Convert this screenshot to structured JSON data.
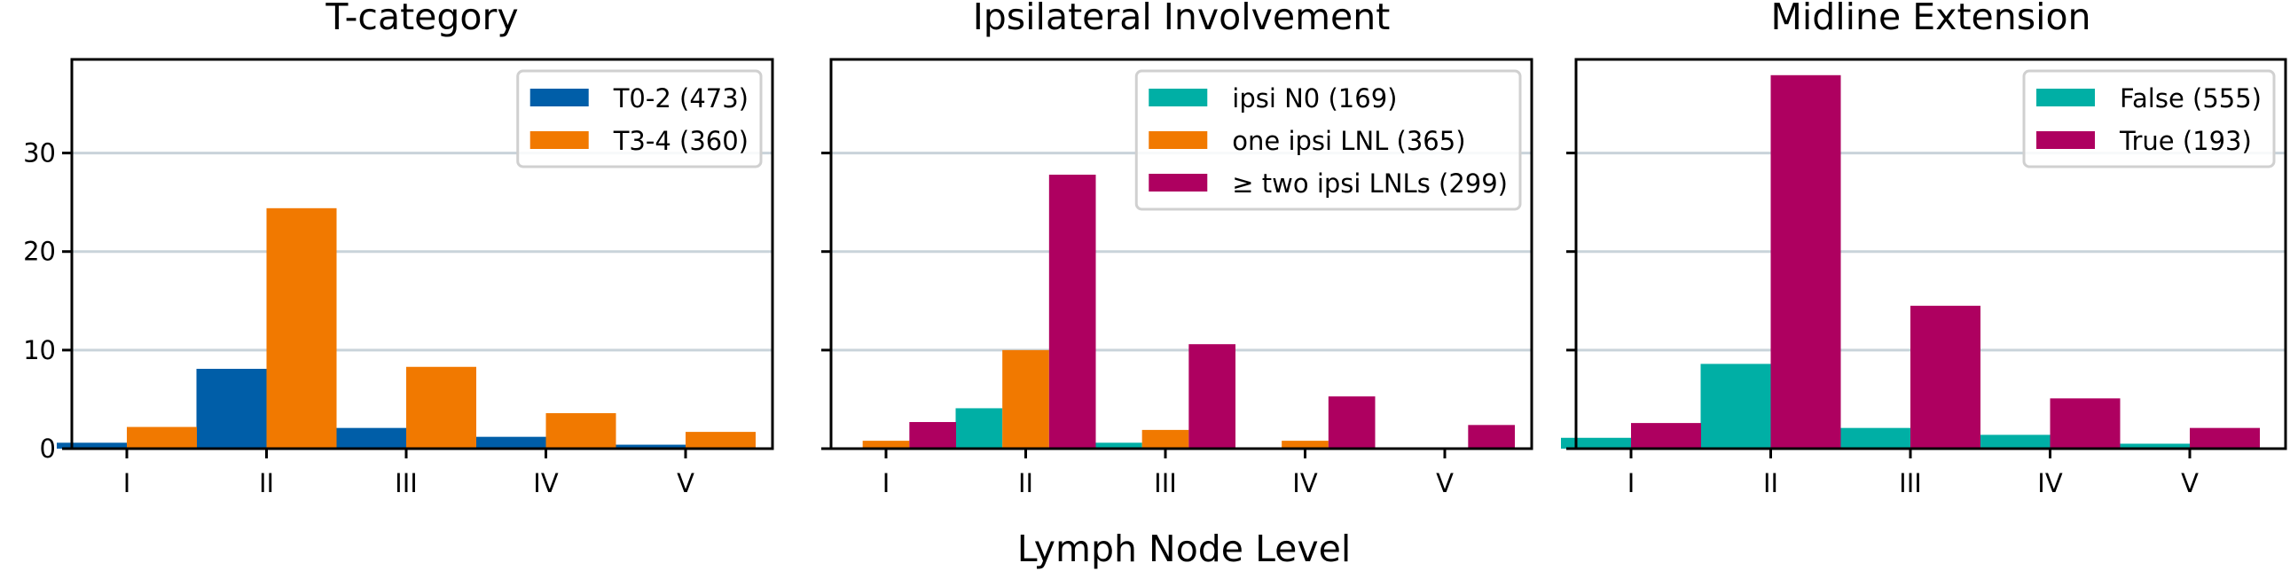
{
  "figure": {
    "xlabel": "Lymph Node Level"
  },
  "chart_data": [
    {
      "type": "bar",
      "title": "T-category",
      "categories": [
        "I",
        "II",
        "III",
        "IV",
        "V"
      ],
      "ylim": [
        0,
        39.5
      ],
      "yticks": [
        0,
        10,
        20,
        30
      ],
      "show_ytick_labels": true,
      "grid": "horizontal",
      "legend": "top-right",
      "series": [
        {
          "name": "T0-2 (473)",
          "color": "#005ea8",
          "values": [
            0.6,
            8.1,
            2.1,
            1.2,
            0.4
          ]
        },
        {
          "name": "T3-4 (360)",
          "color": "#f17900",
          "values": [
            2.2,
            24.4,
            8.3,
            3.6,
            1.7
          ]
        }
      ]
    },
    {
      "type": "bar",
      "title": "Ipsilateral Involvement",
      "categories": [
        "I",
        "II",
        "III",
        "IV",
        "V"
      ],
      "ylim": [
        0,
        39.5
      ],
      "yticks": [
        0,
        10,
        20,
        30
      ],
      "show_ytick_labels": false,
      "grid": "horizontal",
      "legend": "top-right",
      "series": [
        {
          "name": "ipsi N0 (169)",
          "color": "#00afa5",
          "values": [
            0.0,
            4.1,
            0.6,
            0.0,
            0.0
          ]
        },
        {
          "name": "one ipsi LNL (365)",
          "color": "#f17900",
          "values": [
            0.8,
            10.0,
            1.9,
            0.8,
            0.0
          ]
        },
        {
          "name": "≥ two ipsi LNLs (299)",
          "color": "#ae0060",
          "values": [
            2.7,
            27.8,
            10.6,
            5.3,
            2.4
          ]
        }
      ]
    },
    {
      "type": "bar",
      "title": "Midline Extension",
      "categories": [
        "I",
        "II",
        "III",
        "IV",
        "V"
      ],
      "ylim": [
        0,
        39.5
      ],
      "yticks": [
        0,
        10,
        20,
        30
      ],
      "show_ytick_labels": false,
      "grid": "horizontal",
      "legend": "top-right",
      "series": [
        {
          "name": "False (555)",
          "color": "#00afa5",
          "values": [
            1.1,
            8.6,
            2.1,
            1.4,
            0.5
          ]
        },
        {
          "name": "True (193)",
          "color": "#ae0060",
          "values": [
            2.6,
            37.9,
            14.5,
            5.1,
            2.1
          ]
        }
      ]
    }
  ]
}
